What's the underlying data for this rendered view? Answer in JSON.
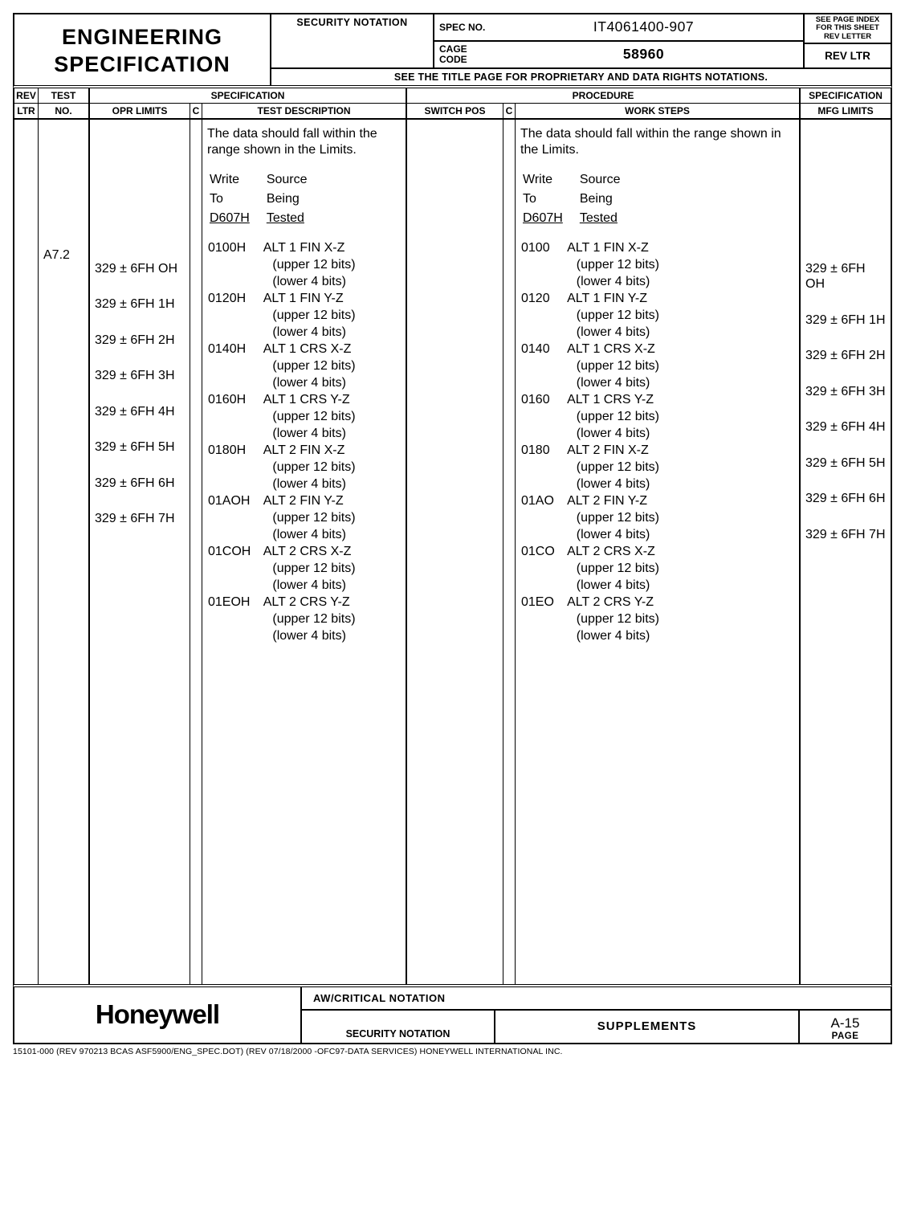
{
  "header": {
    "title_l1": "ENGINEERING",
    "title_l2": "SPECIFICATION",
    "security_notation": "SECURITY NOTATION",
    "spec_no_lbl": "SPEC NO.",
    "spec_no_val": "IT4061400-907",
    "cage_lbl": "CAGE CODE",
    "cage_val": "58960",
    "rev_note_l1": "SEE PAGE INDEX",
    "rev_note_l2": "FOR THIS SHEET",
    "rev_note_l3": "REV LETTER",
    "rev_ltr_lbl": "REV LTR",
    "proprietary_note": "SEE THE TITLE PAGE FOR PROPRIETARY AND DATA RIGHTS NOTATIONS."
  },
  "colheaders": {
    "rev": "REV",
    "ltr": "LTR",
    "test": "TEST",
    "no": "NO.",
    "specification": "SPECIFICATION",
    "opr_limits": "OPR LIMITS",
    "c": "C",
    "test_description": "TEST DESCRIPTION",
    "procedure": "PROCEDURE",
    "switch_pos": "SWITCH POS",
    "work_steps": "WORK STEPS",
    "mfg_limits": "MFG LIMITS"
  },
  "body": {
    "test_no": "A7.2",
    "intro": "The data should fall within the range shown in the Limits.",
    "tblhdr_col1_l1": "Write",
    "tblhdr_col1_l2": "To",
    "tblhdr_col1_l3": "D607H",
    "tblhdr_col2_l1": "Source",
    "tblhdr_col2_l2": "Being",
    "tblhdr_col2_l3": "Tested",
    "items_spec": [
      {
        "addr": "0100H",
        "label": "ALT 1 FIN X-Z"
      },
      {
        "addr": "0120H",
        "label": "ALT 1 FIN Y-Z"
      },
      {
        "addr": "0140H",
        "label": "ALT 1 CRS X-Z"
      },
      {
        "addr": "0160H",
        "label": "ALT 1 CRS Y-Z"
      },
      {
        "addr": "0180H",
        "label": "ALT 2 FIN X-Z"
      },
      {
        "addr": "01AOH",
        "label": "ALT 2 FIN Y-Z"
      },
      {
        "addr": "01COH",
        "label": "ALT 2 CRS X-Z"
      },
      {
        "addr": "01EOH",
        "label": "ALT 2 CRS Y-Z"
      }
    ],
    "items_proc": [
      {
        "addr": "0100",
        "label": "ALT 1 FIN X-Z"
      },
      {
        "addr": "0120",
        "label": "ALT 1 FIN Y-Z"
      },
      {
        "addr": "0140",
        "label": "ALT 1 CRS X-Z"
      },
      {
        "addr": "0160",
        "label": "ALT 1 CRS Y-Z"
      },
      {
        "addr": "0180",
        "label": "ALT 2 FIN X-Z"
      },
      {
        "addr": "01AO",
        "label": "ALT 2 FIN Y-Z"
      },
      {
        "addr": "01CO",
        "label": "ALT 2 CRS X-Z"
      },
      {
        "addr": "01EO",
        "label": "ALT 2 CRS Y-Z"
      }
    ],
    "sub_upper": "(upper 12 bits)",
    "sub_lower": "(lower  4 bits)",
    "limits": [
      "329 ± 6FH OH",
      "329 ± 6FH 1H",
      "329 ± 6FH 2H",
      "329 ± 6FH 3H",
      "329 ± 6FH 4H",
      "329 ± 6FH 5H",
      "329 ± 6FH 6H",
      "329 ± 6FH 7H"
    ]
  },
  "footer": {
    "logo": "Honeywell",
    "aw": "AW/CRITICAL NOTATION",
    "security_notation": "SECURITY NOTATION",
    "supplements": "SUPPLEMENTS",
    "page_no": "A-15",
    "page_lbl": "PAGE",
    "fine": "15101-000 (REV 970213 BCAS ASF5900/ENG_SPEC.DOT)  (REV 07/18/2000 -OFC97-DATA SERVICES) HONEYWELL INTERNATIONAL INC."
  }
}
